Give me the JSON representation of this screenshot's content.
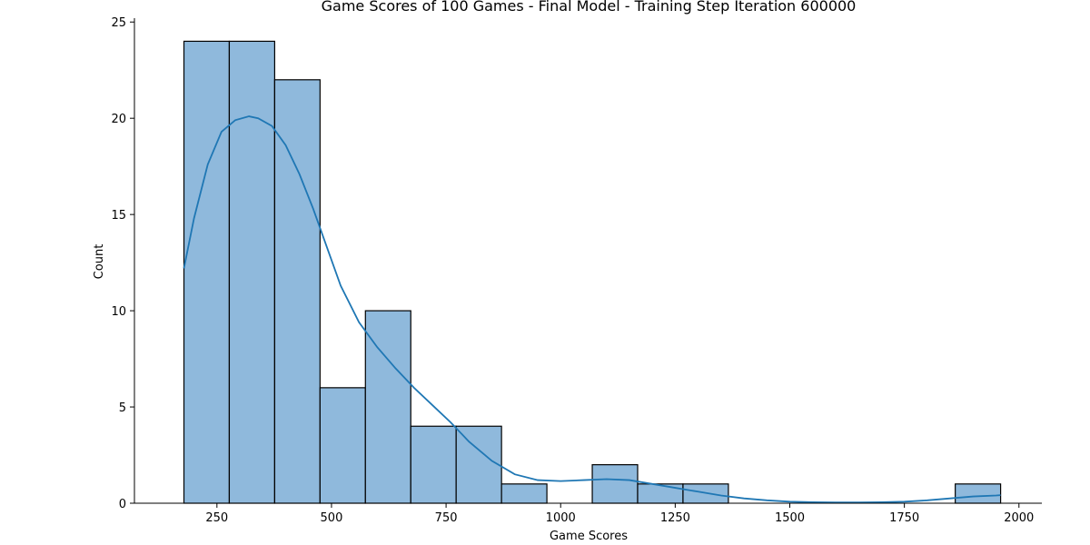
{
  "chart_data": {
    "type": "bar",
    "title": "Game Scores of 100 Games - Final Model - Training Step Iteration 600000",
    "xlabel": "Game Scores",
    "ylabel": "Count",
    "xlim": [
      70,
      2050
    ],
    "ylim": [
      0,
      25.2
    ],
    "xticks": [
      250,
      500,
      750,
      1000,
      1250,
      1500,
      1750,
      2000
    ],
    "yticks": [
      0,
      5,
      10,
      15,
      20,
      25
    ],
    "bar_color": "#8fb9dc",
    "bar_edge_color": "#000000",
    "kde_color": "#1f77b4",
    "grid": false,
    "bins": [
      {
        "start": 178,
        "end": 277,
        "count": 24
      },
      {
        "start": 277,
        "end": 376,
        "count": 24
      },
      {
        "start": 376,
        "end": 475,
        "count": 22
      },
      {
        "start": 475,
        "end": 574,
        "count": 6
      },
      {
        "start": 574,
        "end": 673,
        "count": 10
      },
      {
        "start": 673,
        "end": 772,
        "count": 4
      },
      {
        "start": 772,
        "end": 871,
        "count": 4
      },
      {
        "start": 871,
        "end": 970,
        "count": 1
      },
      {
        "start": 970,
        "end": 1069,
        "count": 0
      },
      {
        "start": 1069,
        "end": 1168,
        "count": 2
      },
      {
        "start": 1168,
        "end": 1267,
        "count": 1
      },
      {
        "start": 1267,
        "end": 1366,
        "count": 1
      },
      {
        "start": 1366,
        "end": 1465,
        "count": 0
      },
      {
        "start": 1465,
        "end": 1564,
        "count": 0
      },
      {
        "start": 1564,
        "end": 1663,
        "count": 0
      },
      {
        "start": 1663,
        "end": 1762,
        "count": 0
      },
      {
        "start": 1762,
        "end": 1861,
        "count": 0
      },
      {
        "start": 1861,
        "end": 1960,
        "count": 1
      }
    ],
    "kde": {
      "x": [
        178,
        200,
        230,
        260,
        290,
        320,
        340,
        370,
        400,
        430,
        460,
        490,
        520,
        560,
        600,
        640,
        680,
        720,
        760,
        800,
        850,
        900,
        950,
        1000,
        1050,
        1100,
        1150,
        1200,
        1250,
        1300,
        1350,
        1400,
        1450,
        1500,
        1550,
        1600,
        1650,
        1700,
        1750,
        1800,
        1850,
        1900,
        1950,
        1960
      ],
      "y": [
        12.2,
        14.8,
        17.6,
        19.3,
        19.9,
        20.1,
        20.0,
        19.6,
        18.6,
        17.1,
        15.3,
        13.3,
        11.3,
        9.4,
        8.1,
        7.0,
        6.0,
        5.1,
        4.2,
        3.2,
        2.2,
        1.5,
        1.2,
        1.15,
        1.2,
        1.25,
        1.2,
        1.0,
        0.8,
        0.6,
        0.4,
        0.25,
        0.15,
        0.08,
        0.05,
        0.04,
        0.04,
        0.05,
        0.08,
        0.15,
        0.25,
        0.35,
        0.4,
        0.42
      ]
    }
  }
}
